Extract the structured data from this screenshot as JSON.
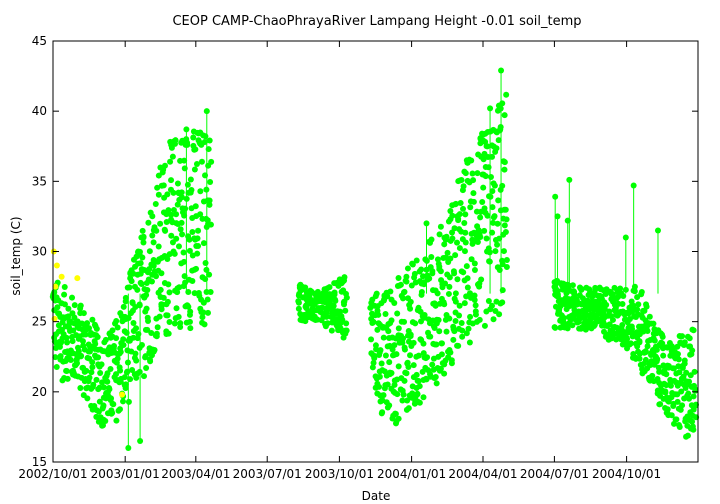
{
  "chart_data": {
    "type": "scatter",
    "title": "CEOP CAMP-ChaoPhrayaRiver Lampang Height -0.01 soil_temp",
    "xlabel": "Date",
    "ylabel": "soil_temp (C)",
    "xlim": [
      "2002-10-01",
      "2004-12-31"
    ],
    "ylim": [
      15,
      45
    ],
    "grid": false,
    "legend": "none",
    "x_ticks": [
      "2002/10/01",
      "2003/01/01",
      "2003/04/01",
      "2003/07/01",
      "2003/10/01",
      "2004/01/01",
      "2004/04/01",
      "2004/07/01",
      "2004/10/01"
    ],
    "y_ticks": [
      15,
      20,
      25,
      30,
      35,
      40,
      45
    ],
    "series": [
      {
        "color": "#00ff00",
        "segments": [
          {
            "start": "2002-10-01",
            "end": "2003-04-20",
            "low": [
              [
                0,
                23.5
              ],
              [
                6,
                20
              ],
              [
                15,
                21
              ],
              [
                30,
                20.5
              ],
              [
                45,
                19
              ],
              [
                60,
                17.5
              ],
              [
                75,
                17.5
              ],
              [
                90,
                18.5
              ],
              [
                105,
                20
              ],
              [
                120,
                21.5
              ],
              [
                135,
                23.5
              ],
              [
                150,
                24
              ],
              [
                161,
                24.5
              ]
            ],
            "high": [
              [
                0,
                28.5
              ],
              [
                6,
                28
              ],
              [
                15,
                27.5
              ],
              [
                30,
                26.5
              ],
              [
                45,
                26
              ],
              [
                60,
                24
              ],
              [
                75,
                24.5
              ],
              [
                90,
                27
              ],
              [
                105,
                30
              ],
              [
                120,
                33
              ],
              [
                135,
                36
              ],
              [
                150,
                38
              ],
              [
                161,
                39
              ]
            ]
          },
          {
            "start": "2003-08-10",
            "end": "2003-10-10",
            "low": [
              [
                0,
                25
              ],
              [
                20,
                25
              ],
              [
                40,
                24.5
              ],
              [
                60,
                23.5
              ]
            ],
            "high": [
              [
                0,
                28
              ],
              [
                20,
                27
              ],
              [
                40,
                27.5
              ],
              [
                60,
                28.5
              ]
            ]
          },
          {
            "start": "2003-11-10",
            "end": "2004-05-01",
            "low": [
              [
                0,
                21
              ],
              [
                15,
                18
              ],
              [
                30,
                17.5
              ],
              [
                45,
                18.5
              ],
              [
                60,
                19
              ],
              [
                75,
                20
              ],
              [
                90,
                21
              ],
              [
                105,
                22
              ],
              [
                120,
                23
              ],
              [
                135,
                24
              ],
              [
                150,
                24.5
              ],
              [
                165,
                25
              ],
              [
                173,
                25.5
              ]
            ],
            "high": [
              [
                0,
                27.5
              ],
              [
                15,
                27
              ],
              [
                30,
                28
              ],
              [
                45,
                29
              ],
              [
                60,
                29.5
              ],
              [
                75,
                31
              ],
              [
                90,
                32
              ],
              [
                105,
                34
              ],
              [
                120,
                36.5
              ],
              [
                135,
                38
              ],
              [
                150,
                39
              ],
              [
                165,
                41
              ],
              [
                173,
                42
              ]
            ]
          },
          {
            "start": "2004-07-01",
            "end": "2004-12-28",
            "low": [
              [
                0,
                24.5
              ],
              [
                30,
                24.5
              ],
              [
                60,
                24
              ],
              [
                90,
                23
              ],
              [
                110,
                21.5
              ],
              [
                130,
                19.5
              ],
              [
                150,
                17.5
              ],
              [
                170,
                16.5
              ],
              [
                180,
                17.5
              ]
            ],
            "high": [
              [
                0,
                28
              ],
              [
                30,
                27.5
              ],
              [
                60,
                27.5
              ],
              [
                90,
                27.5
              ],
              [
                110,
                27.5
              ],
              [
                130,
                24.5
              ],
              [
                150,
                23.5
              ],
              [
                170,
                24.5
              ],
              [
                180,
                25
              ]
            ]
          }
        ],
        "spikes": [
          [
            "2004-07-02",
            33.9
          ],
          [
            "2004-07-05",
            32.5
          ],
          [
            "2004-07-20",
            35.1
          ],
          [
            "2004-07-18",
            32.2
          ],
          [
            "2004-09-30",
            31.0
          ],
          [
            "2004-10-10",
            34.7
          ],
          [
            "2004-11-10",
            31.5
          ],
          [
            "2003-03-20",
            38.7
          ],
          [
            "2004-04-24",
            42.9
          ],
          [
            "2004-04-10",
            40.2
          ],
          [
            "2003-04-15",
            40.0
          ],
          [
            "2004-01-20",
            32.0
          ],
          [
            "2003-01-05",
            16.0
          ],
          [
            "2003-01-20",
            16.5
          ]
        ]
      },
      {
        "color": "#ffff00",
        "points": [
          [
            "2002-10-02",
            30.0
          ],
          [
            "2002-10-04",
            27.5
          ],
          [
            "2002-10-06",
            29.0
          ],
          [
            "2002-10-12",
            28.2
          ],
          [
            "2002-10-03",
            25.2
          ],
          [
            "2002-11-01",
            28.1
          ],
          [
            "2002-12-28",
            19.8
          ]
        ]
      }
    ]
  }
}
